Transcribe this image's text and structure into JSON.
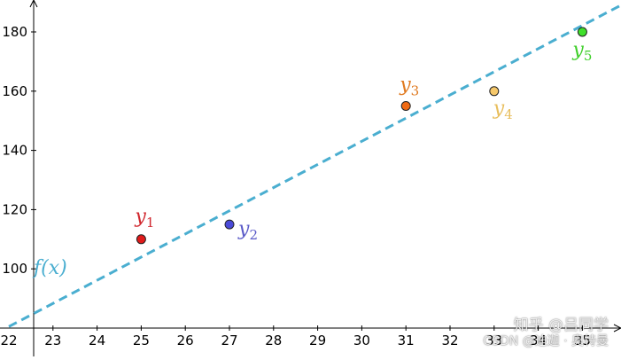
{
  "chart_data": {
    "type": "scatter",
    "x_ticks": [
      "22",
      "23",
      "24",
      "25",
      "26",
      "27",
      "28",
      "29",
      "30",
      "31",
      "32",
      "33",
      "34",
      "35"
    ],
    "y_ticks": [
      "100",
      "120",
      "140",
      "160",
      "180"
    ],
    "xlim": [
      22,
      36
    ],
    "ylim": [
      80,
      190
    ],
    "grid": false,
    "points": [
      {
        "label_base": "y",
        "label_sub": "1",
        "x": 25,
        "y": 110,
        "color": "#e01b1b",
        "label_color": "#d0262d"
      },
      {
        "label_base": "y",
        "label_sub": "2",
        "x": 27,
        "y": 115,
        "color": "#4a4ad8",
        "label_color": "#5b5bc8"
      },
      {
        "label_base": "y",
        "label_sub": "3",
        "x": 31,
        "y": 155,
        "color": "#f06a14",
        "label_color": "#e07a20"
      },
      {
        "label_base": "y",
        "label_sub": "4",
        "x": 33,
        "y": 160,
        "color": "#f6c86a",
        "label_color": "#e8be5c"
      },
      {
        "label_base": "y",
        "label_sub": "5",
        "x": 35,
        "y": 180,
        "color": "#3fe02a",
        "label_color": "#3fcf2a"
      }
    ],
    "line": {
      "label": "f(x)",
      "color": "#4aaed0",
      "style": "dashed",
      "points": [
        [
          22,
          80.5
        ],
        [
          36,
          190
        ]
      ]
    }
  },
  "watermark": {
    "line1": "知乎 @吕同学",
    "line2": "CSDN @迪迦 · 奥特曼"
  }
}
